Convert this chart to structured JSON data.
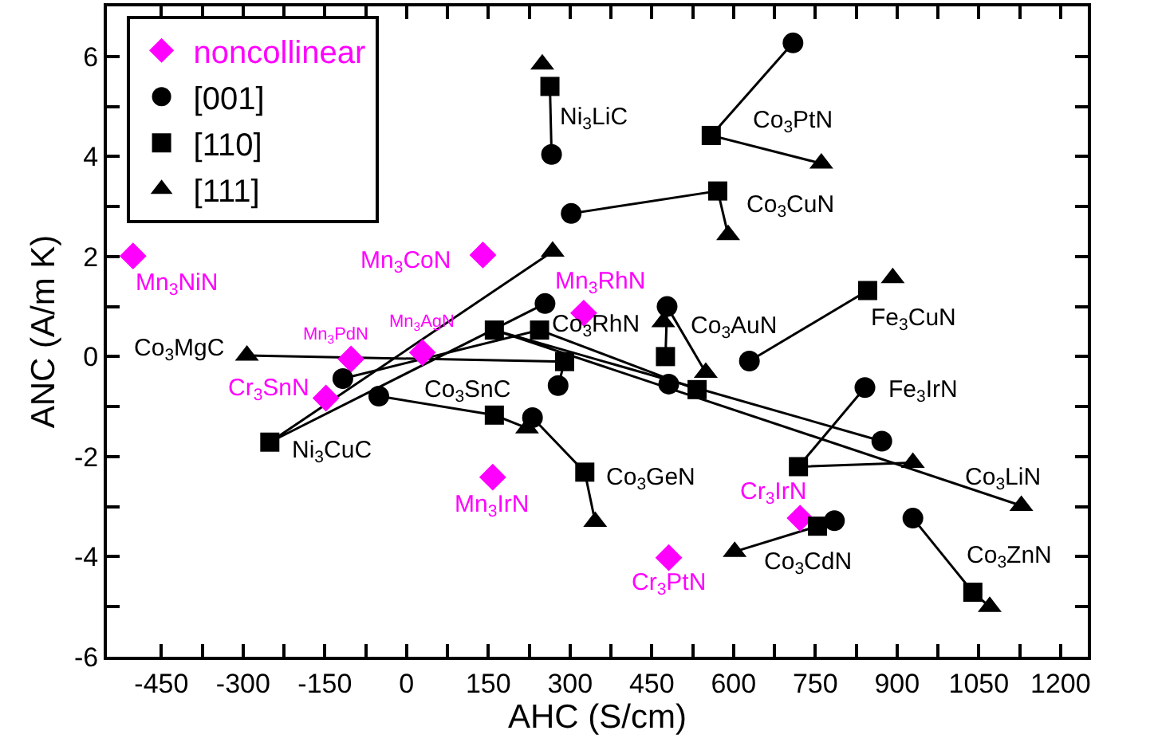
{
  "chart_data": {
    "type": "scatter",
    "xlabel": "AHC (S/cm)",
    "ylabel": "ANC (A/m K)",
    "xlim": [
      -550,
      1250
    ],
    "ylim": [
      -6,
      7
    ],
    "xticks": [
      -450,
      {
        "value": -375,
        "label": null
      },
      -300,
      {
        "value": -225,
        "label": null
      },
      -150,
      {
        "value": -75,
        "label": null
      },
      0,
      {
        "value": 75,
        "label": null
      },
      150,
      {
        "value": 225,
        "label": null
      },
      300,
      {
        "value": 375,
        "label": null
      },
      450,
      {
        "value": 525,
        "label": null
      },
      600,
      {
        "value": 675,
        "label": null
      },
      750,
      {
        "value": 825,
        "label": null
      },
      900,
      {
        "value": 975,
        "label": null
      },
      1050,
      {
        "value": 1125,
        "label": null
      },
      1200
    ],
    "yticks": [
      -6,
      {
        "value": -5,
        "label": null
      },
      -4,
      {
        "value": -3,
        "label": null
      },
      -2,
      {
        "value": -1,
        "label": null
      },
      0,
      {
        "value": 1,
        "label": null
      },
      2,
      {
        "value": 3,
        "label": null
      },
      4,
      {
        "value": 5,
        "label": null
      },
      6
    ],
    "grid": false,
    "legend": "top left",
    "series": [
      {
        "type": "line",
        "color": "#000000",
        "marker": "none",
        "x": [
          266,
          263
        ],
        "values": [
          4.04,
          5.4
        ]
      },
      {
        "type": "line",
        "color": "#000000",
        "marker": "none",
        "x": [
          709,
          559,
          761
        ],
        "values": [
          6.27,
          4.42,
          3.86
        ]
      },
      {
        "type": "line",
        "color": "#000000",
        "marker": "none",
        "x": [
          302,
          571,
          590
        ],
        "values": [
          2.86,
          3.31,
          2.43
        ]
      },
      {
        "type": "line",
        "color": "#000000",
        "marker": "none",
        "x": [
          629,
          846
        ],
        "values": [
          -0.09,
          1.32
        ]
      },
      {
        "type": "line",
        "color": "#000000",
        "marker": "none",
        "x": [
          841,
          719,
          929
        ],
        "values": [
          -0.62,
          -2.2,
          -2.12
        ]
      },
      {
        "type": "line",
        "color": "#000000",
        "marker": "none",
        "x": [
          785,
          754,
          602
        ],
        "values": [
          -3.28,
          -3.39,
          -3.9
        ]
      },
      {
        "type": "line",
        "color": "#000000",
        "marker": "none",
        "x": [
          929,
          1039,
          1070
        ],
        "values": [
          -3.23,
          -4.71,
          -5.0
        ]
      },
      {
        "type": "line",
        "color": "#000000",
        "marker": "none",
        "x": [
          231,
          327,
          346
        ],
        "values": [
          -1.22,
          -2.31,
          -3.3
        ]
      },
      {
        "type": "line",
        "color": "#000000",
        "marker": "none",
        "x": [
          -51,
          161,
          221
        ],
        "values": [
          -0.79,
          -1.17,
          -1.43
        ]
      },
      {
        "type": "line",
        "color": "#000000",
        "marker": "none",
        "x": [
          278,
          290,
          -293
        ],
        "values": [
          -0.58,
          -0.1,
          0.02
        ]
      },
      {
        "type": "line",
        "color": "#000000",
        "marker": "none",
        "x": [
          872,
          161,
          1128
        ],
        "values": [
          -1.69,
          0.53,
          -2.98
        ]
      },
      {
        "type": "line",
        "color": "#000000",
        "marker": "none",
        "x": [
          254,
          -251,
          268
        ],
        "values": [
          1.06,
          -1.71,
          2.1
        ]
      },
      {
        "type": "line",
        "color": "#000000",
        "marker": "none",
        "x": [
          -117,
          244,
          533
        ],
        "values": [
          -0.44,
          0.53,
          -0.66
        ]
      },
      {
        "type": "line",
        "color": "#000000",
        "marker": "none",
        "x": [
          475,
          478,
          549
        ],
        "values": [
          0.0,
          1.0,
          -0.32
        ]
      },
      {
        "name": "noncollinear",
        "color": "#ff00ff",
        "marker": "diamond",
        "x": [
          -502,
          140,
          -102,
          29,
          -148,
          325,
          158,
          722,
          481
        ],
        "values": [
          2.01,
          2.03,
          -0.05,
          0.08,
          -0.83,
          0.87,
          -2.41,
          -3.23,
          -4.02
        ]
      },
      {
        "name": "[001]",
        "color": "#000000",
        "marker": "circle",
        "x": [
          266,
          709,
          302,
          254,
          -117,
          -51,
          231,
          278,
          478,
          481,
          629,
          841,
          872,
          785,
          929
        ],
        "values": [
          4.04,
          6.27,
          2.86,
          1.06,
          -0.44,
          -0.79,
          -1.22,
          -0.58,
          1.0,
          -0.55,
          -0.09,
          -0.62,
          -1.69,
          -3.28,
          -3.23
        ]
      },
      {
        "name": "[110]",
        "color": "#000000",
        "marker": "square",
        "x": [
          263,
          559,
          571,
          161,
          244,
          290,
          -251,
          161,
          327,
          475,
          533,
          846,
          719,
          754,
          1039
        ],
        "values": [
          5.4,
          4.42,
          3.31,
          0.53,
          0.53,
          -0.1,
          -1.71,
          -1.17,
          -2.31,
          0.0,
          -0.66,
          1.32,
          -2.2,
          -3.39,
          -4.71
        ]
      },
      {
        "name": "[111]",
        "color": "#000000",
        "marker": "triangle",
        "x": [
          249,
          761,
          590,
          268,
          -293,
          221,
          346,
          471,
          549,
          892,
          929,
          1128,
          602,
          1070
        ],
        "values": [
          5.84,
          3.86,
          2.43,
          2.1,
          0.02,
          -1.43,
          -3.3,
          0.69,
          -0.32,
          1.57,
          -2.12,
          -2.98,
          -3.9,
          -5.0
        ]
      }
    ],
    "annotations": [
      {
        "text": "Mn$_{3}$NiN",
        "x": -502,
        "y": 2.01
      },
      {
        "text": "Mn$_{3}$CoN",
        "x": 140,
        "y": 2.03
      },
      {
        "text": "Mn$_{3}$PdN",
        "x": -102,
        "y": -0.05
      },
      {
        "text": "Mn$_{3}$AgN",
        "x": 29,
        "y": 0.08
      },
      {
        "text": "Cr$_{3}$SnN",
        "x": -148,
        "y": -0.83
      },
      {
        "text": "Mn$_{3}$RhN",
        "x": 325,
        "y": 0.87
      },
      {
        "text": "Mn$_{3}$IrN",
        "x": 158,
        "y": -2.41
      },
      {
        "text": "Cr$_{3}$IrN",
        "x": 722,
        "y": -3.23
      },
      {
        "text": "Cr$_{3}$PtN",
        "x": 481,
        "y": -4.02
      },
      {
        "text": "Ni$_{3}$LiC",
        "x": 263,
        "y": 5.4
      },
      {
        "text": "Co$_{3}$PtN",
        "x": 559,
        "y": 4.42
      },
      {
        "text": "Co$_{3}$CuN",
        "x": 571,
        "y": 3.31
      },
      {
        "text": "Co$_{3}$MgC",
        "x": -293,
        "y": 0.02
      },
      {
        "text": "Co$_{3}$RhN",
        "x": 244,
        "y": 0.53
      },
      {
        "text": "Co$_{3}$AuN",
        "x": 478,
        "y": 1.0
      },
      {
        "text": "Fe$_{3}$CuN",
        "x": 846,
        "y": 1.32
      },
      {
        "text": "Co$_{3}$SnC",
        "x": -51,
        "y": -0.79
      },
      {
        "text": "Ni$_{3}$CuC",
        "x": -251,
        "y": -1.71
      },
      {
        "text": "Fe$_{3}$IrN",
        "x": 841,
        "y": -0.62
      },
      {
        "text": "Co$_{3}$GeN",
        "x": 327,
        "y": -2.31
      },
      {
        "text": "Co$_{3}$LiN",
        "x": 1128,
        "y": -2.98
      },
      {
        "text": "Co$_{3}$CdN",
        "x": 754,
        "y": -3.39
      },
      {
        "text": "Co$_{3}$ZnN",
        "x": 1039,
        "y": -4.71
      }
    ]
  }
}
